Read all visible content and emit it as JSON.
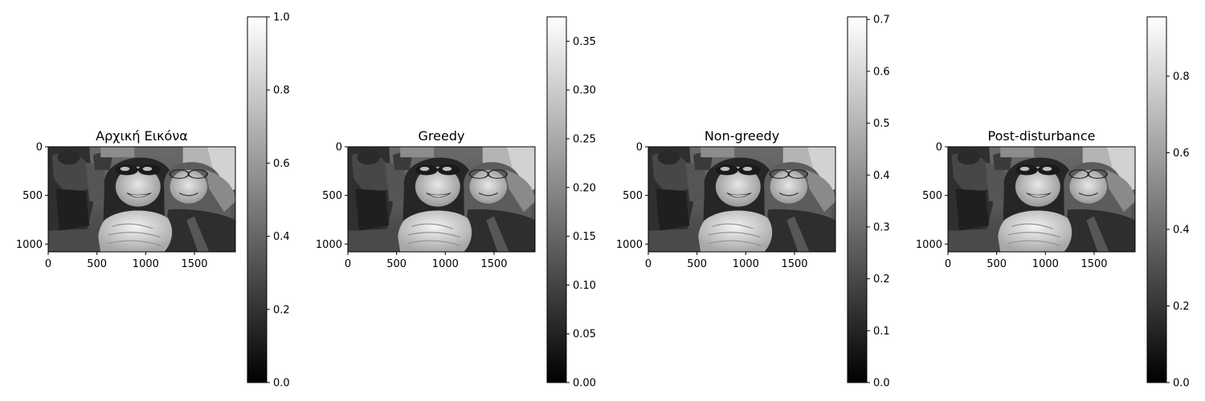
{
  "chart_data": [
    {
      "type": "heatmap",
      "title": "Αρχική Εικόνα",
      "colormap": "gray",
      "xlim": [
        0,
        1920
      ],
      "ylim": [
        1080,
        0
      ],
      "x_ticks": [
        0,
        500,
        1000,
        1500
      ],
      "y_ticks": [
        0,
        500,
        1000
      ],
      "colorbar": {
        "range": [
          0,
          1.0
        ],
        "ticks": [
          0.0,
          0.2,
          0.4,
          0.6,
          0.8,
          1.0
        ],
        "tick_labels": [
          "0.0",
          "0.2",
          "0.4",
          "0.6",
          "0.8",
          "1.0"
        ]
      }
    },
    {
      "type": "heatmap",
      "title": "Greedy",
      "colormap": "gray",
      "xlim": [
        0,
        1920
      ],
      "ylim": [
        1080,
        0
      ],
      "x_ticks": [
        0,
        500,
        1000,
        1500
      ],
      "y_ticks": [
        0,
        500,
        1000
      ],
      "colorbar": {
        "range": [
          0,
          0.375
        ],
        "ticks": [
          0.0,
          0.05,
          0.1,
          0.15,
          0.2,
          0.25,
          0.3,
          0.35
        ],
        "tick_labels": [
          "0.00",
          "0.05",
          "0.10",
          "0.15",
          "0.20",
          "0.25",
          "0.30",
          "0.35"
        ]
      }
    },
    {
      "type": "heatmap",
      "title": "Non-greedy",
      "colormap": "gray",
      "xlim": [
        0,
        1920
      ],
      "ylim": [
        1080,
        0
      ],
      "x_ticks": [
        0,
        500,
        1000,
        1500
      ],
      "y_ticks": [
        0,
        500,
        1000
      ],
      "colorbar": {
        "range": [
          0,
          0.705
        ],
        "ticks": [
          0.0,
          0.1,
          0.2,
          0.3,
          0.4,
          0.5,
          0.6,
          0.7
        ],
        "tick_labels": [
          "0.0",
          "0.1",
          "0.2",
          "0.3",
          "0.4",
          "0.5",
          "0.6",
          "0.7"
        ]
      }
    },
    {
      "type": "heatmap",
      "title": "Post-disturbance",
      "colormap": "gray",
      "xlim": [
        0,
        1920
      ],
      "ylim": [
        1080,
        0
      ],
      "x_ticks": [
        0,
        500,
        1000,
        1500
      ],
      "y_ticks": [
        0,
        500,
        1000
      ],
      "colorbar": {
        "range": [
          0,
          0.955
        ],
        "ticks": [
          0.0,
          0.2,
          0.4,
          0.6,
          0.8
        ],
        "tick_labels": [
          "0.0",
          "0.2",
          "0.4",
          "0.6",
          "0.8"
        ]
      }
    }
  ]
}
